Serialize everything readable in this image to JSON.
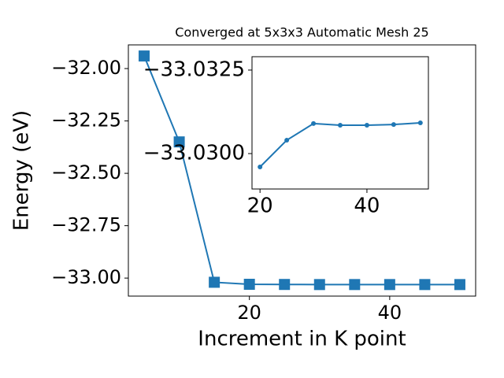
{
  "chart_data": [
    {
      "type": "line",
      "title": "Converged at 5x3x3 Automatic Mesh 25",
      "xlabel": "Increment in K point",
      "ylabel": "Energy (eV)",
      "x": [
        5,
        10,
        15,
        20,
        25,
        30,
        35,
        40,
        45,
        50
      ],
      "values": [
        -31.94,
        -32.35,
        -33.02,
        -33.0296,
        -33.0304,
        -33.0309,
        -33.03085,
        -33.03085,
        -33.03087,
        -33.03092
      ],
      "color": "#1f77b4",
      "marker": "square",
      "xlim": [
        2.75,
        52.25
      ],
      "xticks": [
        20,
        40
      ],
      "ylim": [
        -33.086,
        -31.887
      ],
      "yticks": [
        {
          "value": -33.0,
          "label": "−33.00"
        },
        {
          "value": -32.75,
          "label": "−32.75"
        },
        {
          "value": -32.5,
          "label": "−32.50"
        },
        {
          "value": -32.25,
          "label": "−32.25"
        },
        {
          "value": -32.0,
          "label": "−32.00"
        }
      ]
    },
    {
      "type": "line",
      "x": [
        20,
        25,
        30,
        35,
        40,
        45,
        50
      ],
      "values": [
        -33.0296,
        -33.0304,
        -33.0309,
        -33.03085,
        -33.03085,
        -33.03087,
        -33.03092
      ],
      "color": "#1f77b4",
      "marker": "circle",
      "xlim": [
        18.5,
        51.5
      ],
      "xticks": [
        20,
        40
      ],
      "ylim": [
        -33.02894,
        -33.0329
      ],
      "yticks": [
        {
          "value": -33.03,
          "label": "−33.0300"
        },
        {
          "value": -33.0325,
          "label": "−33.0325"
        }
      ]
    }
  ]
}
